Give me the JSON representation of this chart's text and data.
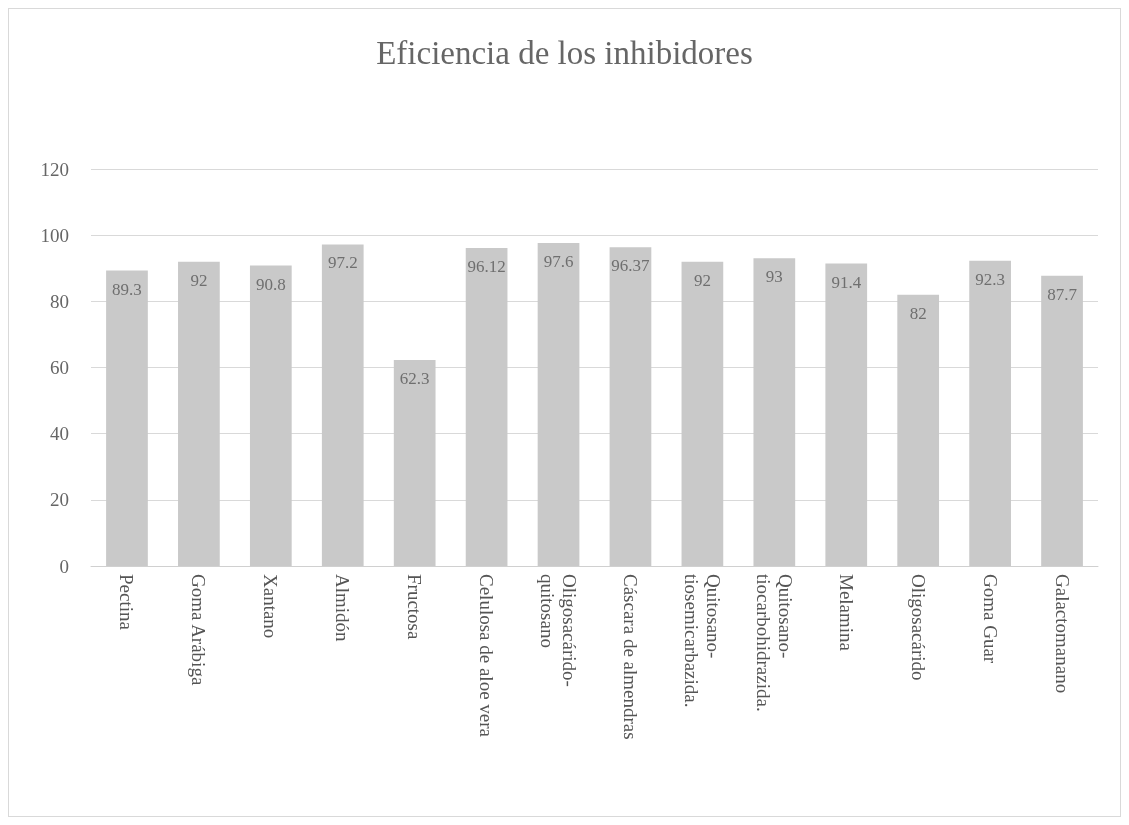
{
  "chart_data": {
    "type": "bar",
    "title": "Eficiencia de los inhibidores",
    "categories": [
      "Pectina",
      "Goma Arábiga",
      "Xantano",
      "Almidón",
      "Fructosa",
      "Celulosa de aloe vera",
      "Oligosacárido-quitosano",
      "Cáscara de almendras",
      "Quitosano-tiosemicarbazida.",
      "Quitosano-tiocarbohidrazida.",
      "Melamina",
      "Oligosacárido",
      "Goma Guar",
      "Galactomanano"
    ],
    "values": [
      89.3,
      92,
      90.8,
      97.2,
      62.3,
      96.12,
      97.6,
      96.37,
      92,
      93,
      91.4,
      82,
      92.3,
      87.7
    ],
    "color": "#c9c9c9",
    "ylim": [
      0,
      120
    ],
    "yticks": [
      0,
      20,
      40,
      60,
      80,
      100,
      120
    ],
    "grid": "y",
    "data_labels": true
  }
}
